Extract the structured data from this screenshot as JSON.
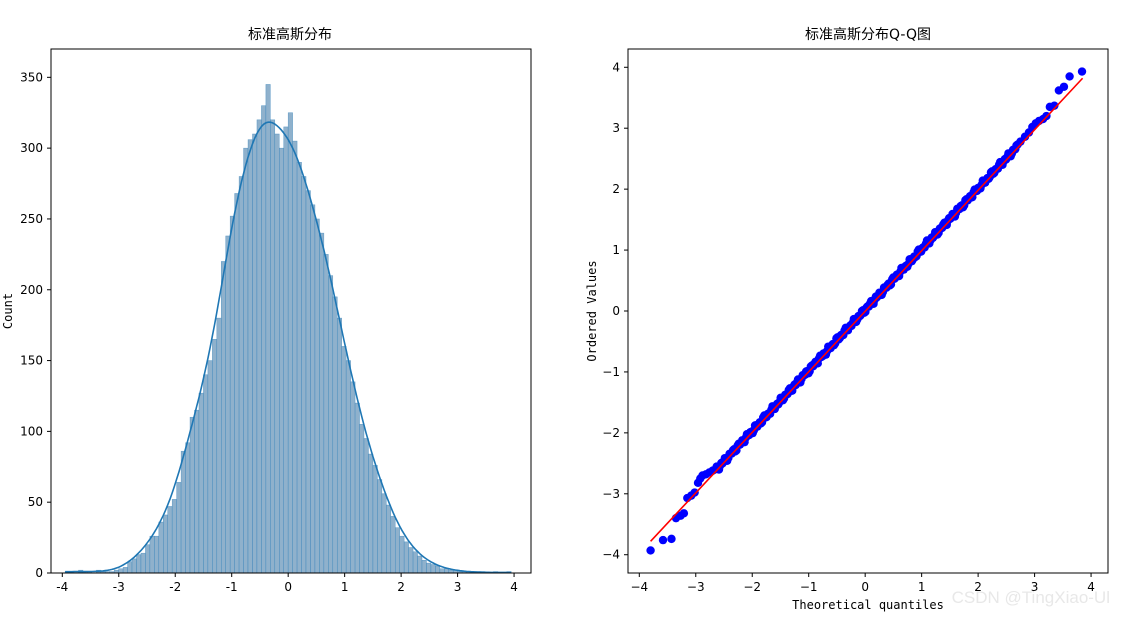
{
  "chart_data": [
    {
      "type": "bar",
      "title": "标准高斯分布",
      "xlabel": "",
      "ylabel": "Count",
      "xlim": [
        -4.2,
        4.3
      ],
      "ylim": [
        0,
        370
      ],
      "xticks": [
        -4,
        -3,
        -2,
        -1,
        0,
        1,
        2,
        3,
        4
      ],
      "yticks": [
        0,
        50,
        100,
        150,
        200,
        250,
        300,
        350
      ],
      "bin_edges_range": [
        -3.95,
        3.95
      ],
      "bins": 100,
      "values": [
        1,
        1,
        0,
        2,
        1,
        1,
        0,
        2,
        1,
        1,
        1,
        2,
        3,
        4,
        8,
        10,
        13,
        14,
        20,
        26,
        26,
        36,
        41,
        47,
        52,
        64,
        86,
        92,
        110,
        115,
        127,
        140,
        150,
        165,
        180,
        220,
        238,
        252,
        268,
        280,
        300,
        306,
        310,
        320,
        330,
        345,
        320,
        310,
        300,
        315,
        325,
        305,
        290,
        280,
        270,
        260,
        250,
        240,
        225,
        210,
        195,
        180,
        160,
        150,
        135,
        120,
        105,
        95,
        84,
        76,
        66,
        56,
        48,
        40,
        32,
        26,
        22,
        18,
        15,
        12,
        9,
        7,
        6,
        5,
        3,
        3,
        2,
        2,
        1,
        1,
        1,
        0,
        1,
        1,
        0,
        0,
        1,
        0,
        0,
        1
      ],
      "kde_color": "#1f77b4",
      "bar_fill": "#8fb1cc",
      "bar_edge": "#1f77b4"
    },
    {
      "type": "scatter",
      "title": "标准高斯分布Q-Q图",
      "xlabel": "Theoretical quantiles",
      "ylabel": "Ordered Values",
      "xlim": [
        -4.2,
        4.3
      ],
      "ylim": [
        -4.3,
        4.3
      ],
      "xticks": [
        -4,
        -3,
        -2,
        -1,
        0,
        1,
        2,
        3,
        4
      ],
      "yticks": [
        -4,
        -3,
        -2,
        -1,
        0,
        1,
        2,
        3,
        4
      ],
      "fit_line": {
        "x": [
          -3.8,
          3.85
        ],
        "y": [
          -3.78,
          3.82
        ],
        "color": "#ff0000"
      },
      "points_color": "#0000ff",
      "tail_points": [
        {
          "x": -3.8,
          "y": -3.93
        },
        {
          "x": -3.58,
          "y": -3.76
        },
        {
          "x": -3.43,
          "y": -3.74
        },
        {
          "x": -3.35,
          "y": -3.4
        },
        {
          "x": -3.27,
          "y": -3.36
        },
        {
          "x": -3.21,
          "y": -3.32
        },
        {
          "x": -3.15,
          "y": -3.07
        },
        {
          "x": -3.08,
          "y": -3.03
        },
        {
          "x": -3.02,
          "y": -2.98
        },
        {
          "x": -2.96,
          "y": -2.82
        },
        {
          "x": -2.92,
          "y": -2.75
        },
        {
          "x": -2.88,
          "y": -2.7
        },
        {
          "x": -2.82,
          "y": -2.68
        },
        {
          "x": -2.76,
          "y": -2.65
        },
        {
          "x": -2.7,
          "y": -2.62
        },
        {
          "x": 2.75,
          "y": 2.78
        },
        {
          "x": 2.83,
          "y": 2.86
        },
        {
          "x": 2.9,
          "y": 2.93
        },
        {
          "x": 2.96,
          "y": 3.02
        },
        {
          "x": 3.02,
          "y": 3.08
        },
        {
          "x": 3.08,
          "y": 3.12
        },
        {
          "x": 3.15,
          "y": 3.15
        },
        {
          "x": 3.21,
          "y": 3.2
        },
        {
          "x": 3.27,
          "y": 3.35
        },
        {
          "x": 3.35,
          "y": 3.37
        },
        {
          "x": 3.43,
          "y": 3.62
        },
        {
          "x": 3.52,
          "y": 3.68
        },
        {
          "x": 3.62,
          "y": 3.85
        },
        {
          "x": 3.84,
          "y": 3.93
        }
      ]
    }
  ],
  "watermark": "CSDN @TingXiao-Ul"
}
